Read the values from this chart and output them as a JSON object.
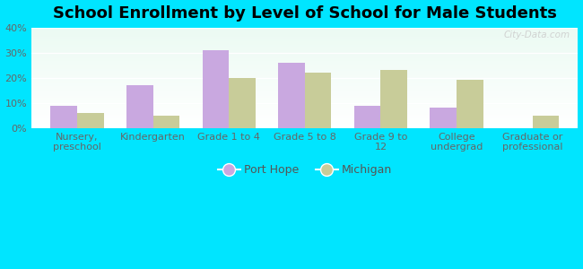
{
  "title": "School Enrollment by Level of School for Male Students",
  "categories": [
    "Nursery,\npreschool",
    "Kindergarten",
    "Grade 1 to 4",
    "Grade 5 to 8",
    "Grade 9 to\n12",
    "College\nundergrad",
    "Graduate or\nprofessional"
  ],
  "port_hope": [
    9,
    17,
    31,
    26,
    9,
    8,
    0
  ],
  "michigan": [
    6,
    5,
    20,
    22,
    23,
    19,
    5
  ],
  "port_hope_color": "#c9a8e0",
  "michigan_color": "#c8cc99",
  "background_outer": "#00e5ff",
  "background_inner_top": "#f0faf0",
  "background_inner_bottom": "#cceedd",
  "ylim": [
    0,
    40
  ],
  "yticks": [
    0,
    10,
    20,
    30,
    40
  ],
  "ytick_labels": [
    "0%",
    "10%",
    "20%",
    "30%",
    "40%"
  ],
  "legend_labels": [
    "Port Hope",
    "Michigan"
  ],
  "title_fontsize": 13,
  "tick_fontsize": 8,
  "legend_fontsize": 9,
  "bar_width": 0.35,
  "watermark": "City-Data.com"
}
